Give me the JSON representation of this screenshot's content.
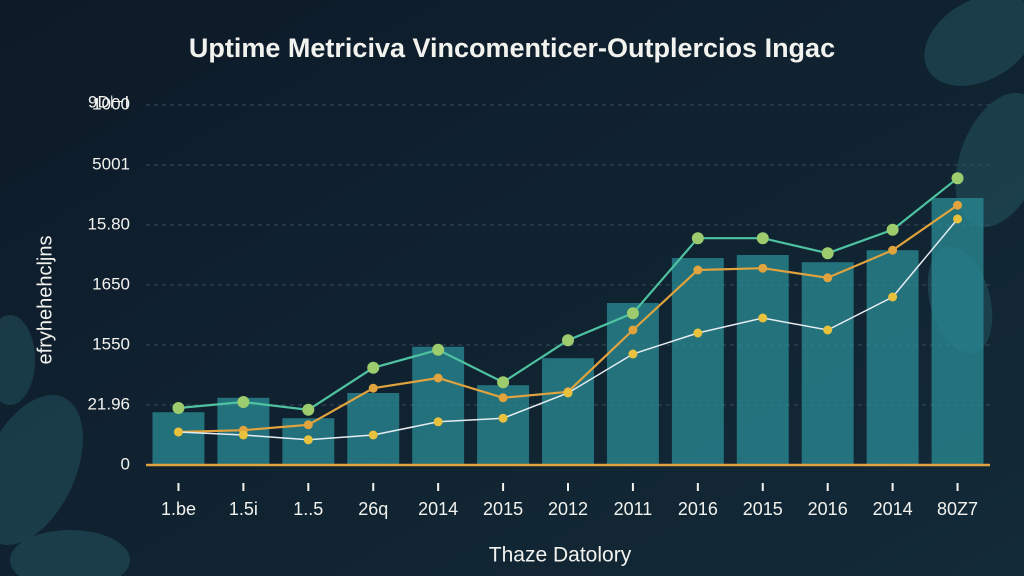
{
  "chart_data": {
    "type": "bar_line",
    "title": "Uptime Metriciva Vincomenticer-Outplercios Ingac",
    "y_unit": "9D⊢I",
    "y_label": "efryhehehcljns",
    "x_label": "Thaze Datolory",
    "categories": [
      "1.be",
      "1.5i",
      "1..5",
      "26q",
      "2014",
      "2015",
      "2012",
      "2011",
      "2016",
      "2015",
      "2016",
      "2014",
      "80Z7"
    ],
    "ylim": [
      0,
      6
    ],
    "yticks": [
      0,
      {
        "value": 1,
        "label": "21.96"
      },
      {
        "value": 2,
        "label": "1550"
      },
      {
        "value": 3,
        "label": "1650"
      },
      {
        "value": 4,
        "label": "15.80"
      },
      {
        "value": 5,
        "label": "5001"
      },
      {
        "value": 6,
        "label": "1000"
      }
    ],
    "grid": true,
    "bars": {
      "color": "#2a8c96",
      "values": [
        0.88,
        1.12,
        0.78,
        1.2,
        1.97,
        1.33,
        1.78,
        2.7,
        3.45,
        3.5,
        3.38,
        3.58,
        4.45
      ]
    },
    "series": [
      {
        "color": "#4fc3a1",
        "marker_color": "#9ccc6e",
        "values": [
          0.95,
          1.05,
          0.92,
          1.62,
          1.92,
          1.38,
          2.08,
          2.53,
          3.78,
          3.78,
          3.53,
          3.92,
          4.78
        ]
      },
      {
        "color": "#e0a33e",
        "marker_color": "#e0a33e",
        "values": [
          0.55,
          0.58,
          0.67,
          1.28,
          1.45,
          1.12,
          1.22,
          2.25,
          3.25,
          3.28,
          3.12,
          3.58,
          4.33
        ]
      },
      {
        "color": "#e6edf2",
        "marker_color": "#e8c23e",
        "values": [
          0.55,
          0.5,
          0.42,
          0.5,
          0.72,
          0.78,
          1.2,
          1.85,
          2.2,
          2.45,
          2.25,
          2.8,
          4.1
        ]
      }
    ]
  }
}
